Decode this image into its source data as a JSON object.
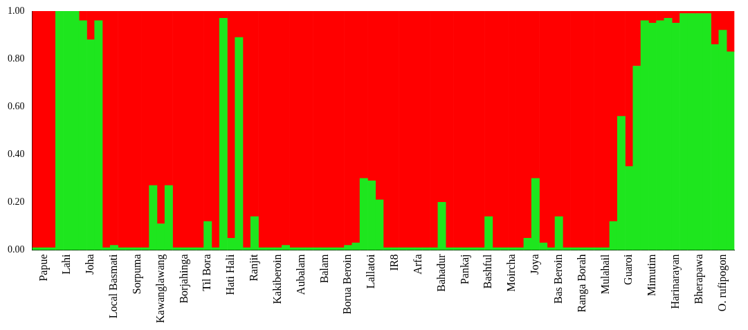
{
  "chart_data": {
    "type": "bar",
    "stacked": true,
    "categories": [
      null,
      "Papue",
      null,
      null,
      "Lahi",
      null,
      null,
      "Joha",
      null,
      null,
      "Local Basmati",
      null,
      null,
      "Sorpuma",
      null,
      null,
      "Kawanglawang",
      null,
      null,
      "Borjahinga",
      null,
      null,
      "Til Bora",
      null,
      null,
      "Hati Hali",
      null,
      null,
      "Ranjit",
      null,
      null,
      "Kakiberoin",
      null,
      null,
      "Aubalam",
      null,
      null,
      "Balam",
      null,
      null,
      "Borua Beroin",
      null,
      null,
      "Lallatoi",
      null,
      null,
      "IR8",
      null,
      null,
      "Arfa",
      null,
      null,
      "Bahadur",
      null,
      null,
      "Pankaj",
      null,
      null,
      "Bashful",
      null,
      null,
      "Moircha",
      null,
      null,
      "Joya",
      null,
      null,
      "Bas Beroin",
      null,
      null,
      "Ranga Borah",
      null,
      null,
      "Mulahail",
      null,
      null,
      "Guaroi",
      null,
      null,
      "Mimutim",
      null,
      null,
      "Harinarayan",
      null,
      null,
      "Bherapawa",
      null,
      null,
      "O. rufipogon",
      null
    ],
    "series": [
      {
        "color": "#1ee61e",
        "values": [
          0.01,
          0.01,
          0.01,
          1,
          1,
          1,
          0.96,
          0.88,
          0.96,
          0.01,
          0.02,
          0.01,
          0.01,
          0.01,
          0.01,
          0.27,
          0.11,
          0.27,
          0.01,
          0.01,
          0.01,
          0.01,
          0.12,
          0.01,
          0.97,
          0.05,
          0.89,
          0.01,
          0.14,
          0.01,
          0.01,
          0.01,
          0.02,
          0.01,
          0.01,
          0.01,
          0.01,
          0.01,
          0.01,
          0.01,
          0.02,
          0.03,
          0.3,
          0.29,
          0.21,
          0.01,
          0.01,
          0.01,
          0.01,
          0.01,
          0.01,
          0.01,
          0.2,
          0.01,
          0.01,
          0.01,
          0.01,
          0.01,
          0.14,
          0.01,
          0.01,
          0.01,
          0.01,
          0.05,
          0.3,
          0.03,
          0.01,
          0.14,
          0.01,
          0.01,
          0.01,
          0.01,
          0.01,
          0.01,
          0.12,
          0.56,
          0.35,
          0.77,
          0.96,
          0.95,
          0.96,
          0.97,
          0.95,
          0.99,
          0.99,
          0.99,
          0.99,
          0.86,
          0.92,
          0.83
        ]
      },
      {
        "color": "#ff0000",
        "values": [
          0.99,
          0.99,
          0.99,
          0,
          0,
          0,
          0.04,
          0.12,
          0.04,
          0.99,
          0.98,
          0.99,
          0.99,
          0.99,
          0.99,
          0.73,
          0.89,
          0.73,
          0.99,
          0.99,
          0.99,
          0.99,
          0.88,
          0.99,
          0.03,
          0.95,
          0.11,
          0.99,
          0.86,
          0.99,
          0.99,
          0.99,
          0.98,
          0.99,
          0.99,
          0.99,
          0.99,
          0.99,
          0.99,
          0.99,
          0.98,
          0.97,
          0.7,
          0.71,
          0.79,
          0.99,
          0.99,
          0.99,
          0.99,
          0.99,
          0.99,
          0.99,
          0.8,
          0.99,
          0.99,
          0.99,
          0.99,
          0.99,
          0.86,
          0.99,
          0.99,
          0.99,
          0.99,
          0.95,
          0.7,
          0.97,
          0.99,
          0.86,
          0.99,
          0.99,
          0.99,
          0.99,
          0.99,
          0.99,
          0.88,
          0.44,
          0.65,
          0.23,
          0.04,
          0.05,
          0.04,
          0.03,
          0.05,
          0.01,
          0.01,
          0.01,
          0.01,
          0.14,
          0.08,
          0.17
        ]
      }
    ],
    "ylim": [
      0,
      1
    ],
    "yticks": [
      {
        "value": 0,
        "label": "0.00"
      },
      {
        "value": 0.2,
        "label": "0.20"
      },
      {
        "value": 0.4,
        "label": "0.40"
      },
      {
        "value": 0.6,
        "label": "0.60"
      },
      {
        "value": 0.8,
        "label": "0.80"
      },
      {
        "value": 1,
        "label": "1.00"
      }
    ],
    "grid": false,
    "legend": false
  }
}
